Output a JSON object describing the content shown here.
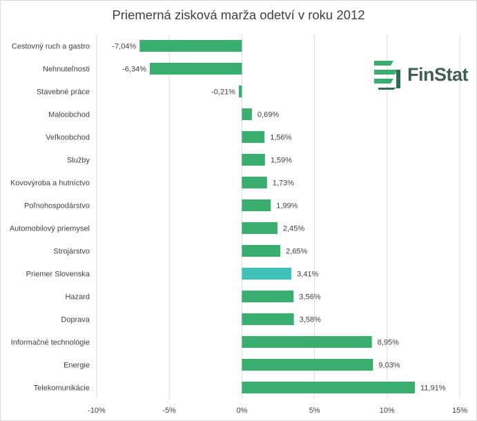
{
  "chart_data": {
    "type": "bar",
    "orientation": "horizontal",
    "title": "Priemerná zisková marža odetví v roku 2012",
    "categories": [
      "Cestovný ruch a gastro",
      "Nehnuteľnosti",
      "Stavebné práce",
      "Maloobchod",
      "Veľkoobchod",
      "Služby",
      "Kovovýroba a hutníctvo",
      "Poľnohospodárstvo",
      "Automobilový priemysel",
      "Strojárstvo",
      "Priemer Slovenska",
      "Hazard",
      "Doprava",
      "Informačné technológie",
      "Energie",
      "Telekomunikácie"
    ],
    "values": [
      -7.04,
      -6.34,
      -0.21,
      0.69,
      1.56,
      1.59,
      1.73,
      1.99,
      2.45,
      2.65,
      3.41,
      3.56,
      3.58,
      8.95,
      9.03,
      11.91
    ],
    "value_labels": [
      "-7,04%",
      "-6,34%",
      "-0,21%",
      "0,69%",
      "1,56%",
      "1,59%",
      "1,73%",
      "1,99%",
      "2,45%",
      "2,65%",
      "3,41%",
      "3,56%",
      "3,58%",
      "8,95%",
      "9,03%",
      "11,91%"
    ],
    "xlim": [
      -10,
      15
    ],
    "xticks": [
      -10,
      -5,
      0,
      5,
      10,
      15
    ],
    "xtick_labels": [
      "-10%",
      "-5%",
      "0%",
      "5%",
      "10%",
      "15%"
    ],
    "grid": "vertical",
    "colors": {
      "bar": "#3aae6f",
      "highlight": "#3ec2b8",
      "grid": "#d9d9d9"
    },
    "highlight_category": "Priemer Slovenska"
  },
  "logo": {
    "text": "FinStat",
    "icon": "finstat-logo-icon"
  }
}
